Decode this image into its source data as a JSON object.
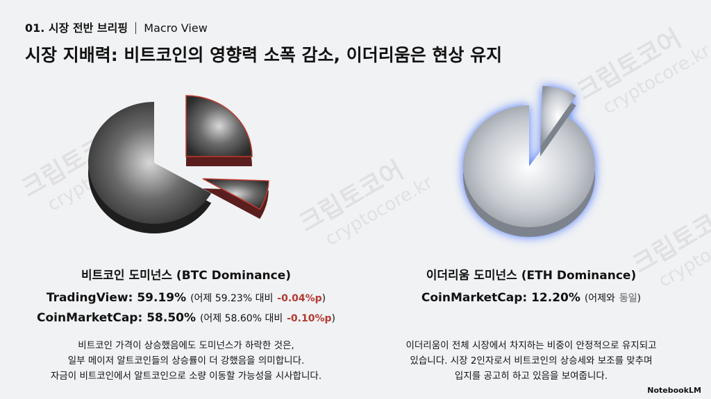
{
  "header": {
    "kicker": "01. 시장 전반 브리핑",
    "section": "Macro View",
    "title": "시장 지배력: 비트코인의 영향력 소폭 감소, 이더리움은 현상 유지"
  },
  "btc": {
    "heading": "비트코인 도미넌스 (BTC Dominance)",
    "rows": [
      {
        "source": "TradingView:",
        "value": "59.19%",
        "note": "(어제 59.23% 대비",
        "change": "-0.04%p",
        "close": ")"
      },
      {
        "source": "CoinMarketCap:",
        "value": "58.50%",
        "note": "(어제 58.60% 대비",
        "change": "-0.10%p",
        "close": ")"
      }
    ],
    "body": [
      "비트코인 가격이 상승했음에도 도미넌스가 하락한 것은,",
      "일부 메이저 알트코인들의 상승률이 더 강했음을 의미합니다.",
      "자금이 비트코인에서 알트코인으로 소량 이동할 가능성을 시사합니다."
    ]
  },
  "eth": {
    "heading": "이더리움 도미넌스 (ETH Dominance)",
    "rows": [
      {
        "source": "CoinMarketCap:",
        "value": "12.20%",
        "note": "(어제와",
        "change": "동일",
        "close": ")"
      }
    ],
    "body": [
      "이더리움이 전체 시장에서 차지하는 비중이 안정적으로 유지되고",
      "있습니다. 시장 2인자로서 비트코인의 상승세와 보조를 맞추며",
      "입지를 공고히 하고 있음을 보여줍니다."
    ]
  },
  "watermark": {
    "brand": "크립토코어",
    "url": "cryptocore.kr"
  },
  "footer": {
    "logo": "NotebookLM"
  }
}
